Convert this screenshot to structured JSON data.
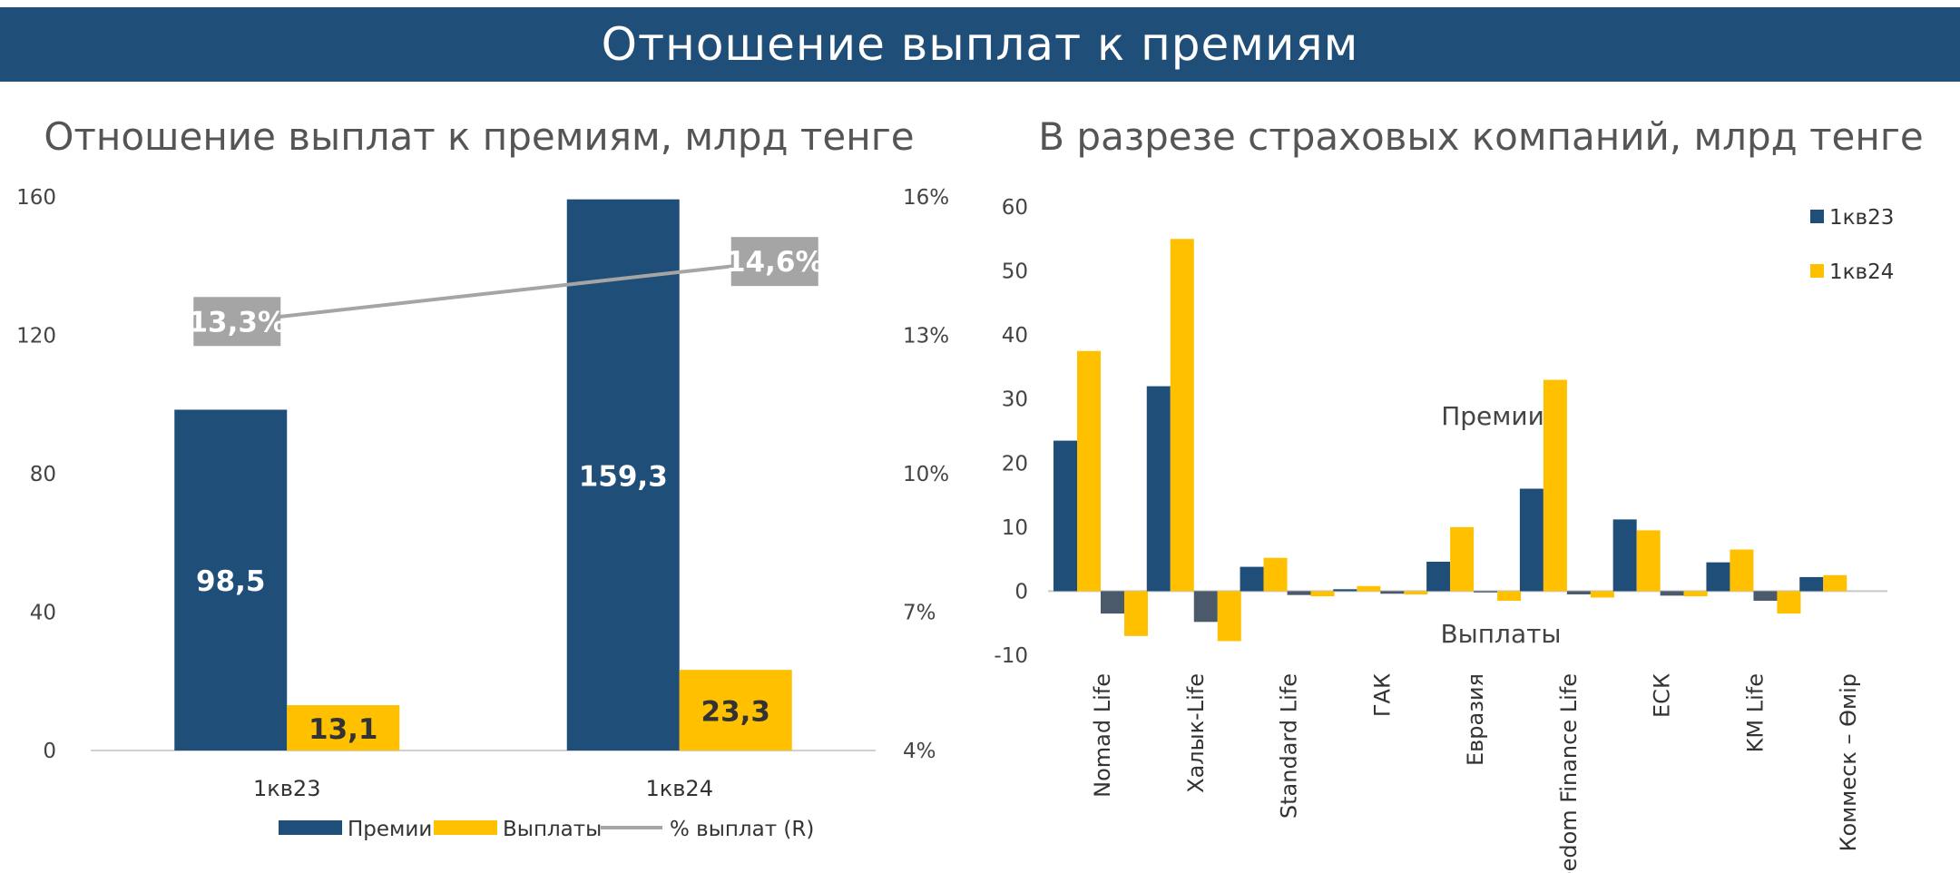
{
  "header": {
    "title": "Отношение выплат к премиям"
  },
  "chart_data": [
    {
      "type": "bar",
      "title": "Отношение выплат к премиям, млрд тенге",
      "categories": [
        "1кв23",
        "1кв24"
      ],
      "series": [
        {
          "name": "Премии",
          "values": [
            98.5,
            159.3
          ],
          "labels": [
            "98,5",
            "159,3"
          ],
          "color": "#1f4e79"
        },
        {
          "name": "Выплаты",
          "values": [
            13.1,
            23.3
          ],
          "labels": [
            "13,1",
            "23,3"
          ],
          "color": "#ffc000"
        }
      ],
      "line_series": {
        "name": "%  выплат (R)",
        "values": [
          13.3,
          14.6
        ],
        "labels": [
          "13,3%",
          "14,6%"
        ],
        "color": "#a5a5a5"
      },
      "ylim": [
        0,
        160
      ],
      "yticks": [
        "160",
        "120",
        "80",
        "40",
        "0"
      ],
      "y2lim": [
        4,
        16
      ],
      "y2ticks": [
        "16%",
        "13%",
        "10%",
        "7%",
        "4%"
      ],
      "legend_position": "bottom"
    },
    {
      "type": "bar",
      "title": "В разрезе страховых компаний, млрд тенге",
      "categories": [
        "Nomad Life",
        "Халык-Life",
        "Standard Life",
        "ГАК",
        "Евразия",
        "Freedom Finance Life",
        "ЕСК",
        "KM Life",
        "Коммеск – Өмір"
      ],
      "series": [
        {
          "name": "1кв23",
          "color": "#1f4e79",
          "premiums": [
            23.5,
            32.0,
            3.8,
            0.3,
            4.6,
            16.0,
            11.2,
            4.5,
            2.2
          ],
          "payouts": [
            -3.5,
            -4.8,
            -0.6,
            -0.4,
            -0.2,
            -0.5,
            -0.7,
            -1.5,
            0.0
          ]
        },
        {
          "name": "1кв24",
          "color": "#ffc000",
          "premiums": [
            37.5,
            55.0,
            5.2,
            0.8,
            10.0,
            33.0,
            9.5,
            6.5,
            2.5
          ],
          "payouts": [
            -7.0,
            -7.8,
            -0.8,
            -0.5,
            -1.5,
            -1.0,
            -0.8,
            -3.5,
            0.0
          ]
        }
      ],
      "payouts_color_1kv23": "#4a5a6b",
      "ylim": [
        -10,
        60
      ],
      "yticks": [
        "60",
        "50",
        "40",
        "30",
        "20",
        "10",
        "0",
        "-10"
      ],
      "annotations": {
        "premiums": "Премии",
        "payouts": "Выплаты"
      },
      "legend_position": "top-right"
    }
  ]
}
